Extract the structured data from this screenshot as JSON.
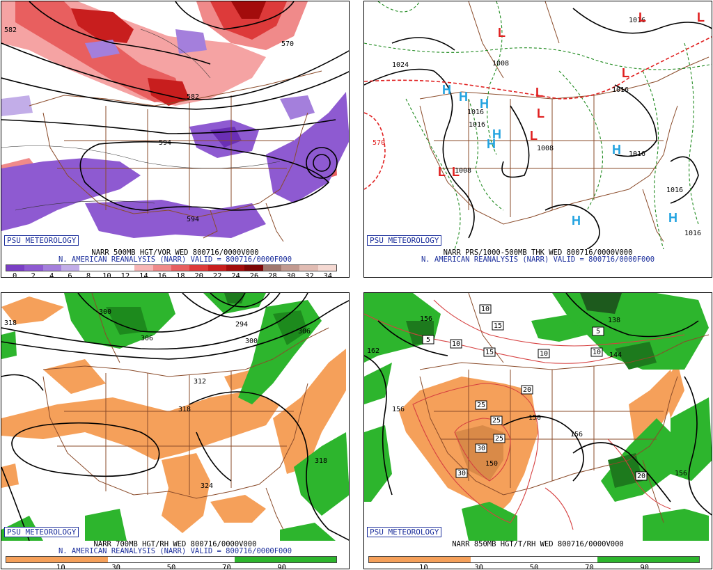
{
  "brand_label": "PSU METEOROLOGY",
  "panels": [
    {
      "id": "500mb",
      "line1": "NARR 500MB HGT/VOR WED 800716/0000V000",
      "line2": "N. AMERICAN REANALYSIS (NARR) VALID = 800716/0000F000",
      "contour_labels": [
        "582",
        "570",
        "582",
        "594",
        "594"
      ],
      "ticks": [
        "0",
        "2",
        "4",
        "6",
        "8",
        "10",
        "12",
        "14",
        "16",
        "18",
        "20",
        "22",
        "24",
        "26",
        "28",
        "30",
        "32",
        "34"
      ],
      "colorbar": [
        "#7a3fc4",
        "#8e5ad1",
        "#a47fdc",
        "#c2ade8",
        "#ffffff",
        "#ffffff",
        "#ffffff",
        "#f7b6b6",
        "#f08a8a",
        "#e85f5f",
        "#dd3a3a",
        "#c81e1e",
        "#a30c0c",
        "#7c0505",
        "#a0786e",
        "#c29a90",
        "#e1bcb3",
        "#f5d9d2"
      ]
    },
    {
      "id": "mslp",
      "line1": "NARR PRS/1000-500MB THK WED 800716/0000V000",
      "line2": "N. AMERICAN REANALYSIS (NARR) VALID = 800716/0000F000",
      "contour_labels": [
        "1024",
        "1008",
        "1016",
        "1016",
        "1008",
        "1016",
        "1016",
        "1016",
        "1008",
        "570",
        "1016",
        "1016"
      ],
      "high_marks": [
        "H",
        "H",
        "H",
        "H",
        "H",
        "H",
        "H",
        "H"
      ],
      "low_marks": [
        "L",
        "L",
        "L",
        "L",
        "L",
        "L",
        "L",
        "L",
        "L"
      ]
    },
    {
      "id": "700mb",
      "line1": "NARR 700MB HGT/RH WED 800716/0000V000",
      "line2": "N. AMERICAN REANALYSIS (NARR) VALID = 800716/0000F000",
      "contour_labels": [
        "318",
        "300",
        "306",
        "300",
        "294",
        "306",
        "312",
        "318",
        "318",
        "324"
      ],
      "ticks": [
        "10",
        "30",
        "50",
        "70",
        "90"
      ],
      "colorbar": [
        "#f5a05a",
        "#f5a05a",
        "#f5a05a",
        "#f5a05a",
        "#ffffff",
        "#ffffff",
        "#ffffff",
        "#ffffff",
        "#ffffff",
        "#2db52d",
        "#2db52d",
        "#2db52d",
        "#2db52d"
      ]
    },
    {
      "id": "850mb",
      "line1": "NARR 850MB HGT/T/RH WED 800716/0000V000",
      "contour_labels": [
        "156",
        "138",
        "162",
        "144",
        "156",
        "150",
        "150",
        "156",
        "156"
      ],
      "temp_boxes": [
        "10",
        "15",
        "5",
        "10",
        "15",
        "10",
        "10",
        "5",
        "20",
        "25",
        "25",
        "30",
        "25",
        "30",
        "20"
      ],
      "ticks": [
        "10",
        "30",
        "50",
        "70",
        "90"
      ],
      "colorbar": [
        "#f5a05a",
        "#f5a05a",
        "#f5a05a",
        "#f5a05a",
        "#ffffff",
        "#ffffff",
        "#ffffff",
        "#ffffff",
        "#ffffff",
        "#2db52d",
        "#2db52d",
        "#2db52d",
        "#2db52d"
      ]
    }
  ]
}
